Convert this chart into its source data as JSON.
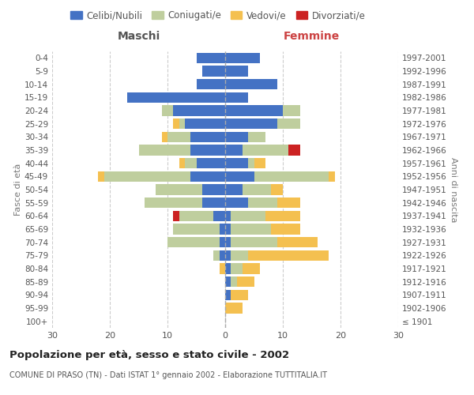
{
  "age_groups": [
    "100+",
    "95-99",
    "90-94",
    "85-89",
    "80-84",
    "75-79",
    "70-74",
    "65-69",
    "60-64",
    "55-59",
    "50-54",
    "45-49",
    "40-44",
    "35-39",
    "30-34",
    "25-29",
    "20-24",
    "15-19",
    "10-14",
    "5-9",
    "0-4"
  ],
  "birth_years": [
    "≤ 1901",
    "1902-1906",
    "1907-1911",
    "1912-1916",
    "1917-1921",
    "1922-1926",
    "1927-1931",
    "1932-1936",
    "1937-1941",
    "1942-1946",
    "1947-1951",
    "1952-1956",
    "1957-1961",
    "1962-1966",
    "1967-1971",
    "1972-1976",
    "1977-1981",
    "1982-1986",
    "1987-1991",
    "1992-1996",
    "1997-2001"
  ],
  "colors": {
    "celibi": "#4472C4",
    "coniugati": "#BFCE9E",
    "vedovi": "#F4C050",
    "divorziati": "#CC2222"
  },
  "maschi": {
    "celibi": [
      0,
      0,
      0,
      0,
      0,
      1,
      1,
      1,
      2,
      4,
      4,
      6,
      5,
      6,
      6,
      7,
      9,
      17,
      5,
      4,
      5
    ],
    "coniugati": [
      0,
      0,
      0,
      0,
      0,
      1,
      9,
      8,
      6,
      10,
      8,
      15,
      2,
      9,
      4,
      1,
      2,
      0,
      0,
      0,
      0
    ],
    "vedovi": [
      0,
      0,
      0,
      0,
      1,
      0,
      0,
      0,
      0,
      0,
      0,
      1,
      1,
      0,
      1,
      1,
      0,
      0,
      0,
      0,
      0
    ],
    "divorziati": [
      0,
      0,
      0,
      0,
      0,
      0,
      0,
      0,
      1,
      0,
      0,
      0,
      0,
      0,
      0,
      0,
      0,
      0,
      0,
      0,
      0
    ]
  },
  "femmine": {
    "celibi": [
      0,
      0,
      1,
      1,
      1,
      1,
      1,
      1,
      1,
      4,
      3,
      5,
      4,
      3,
      4,
      9,
      10,
      4,
      9,
      4,
      6
    ],
    "coniugati": [
      0,
      0,
      0,
      1,
      2,
      3,
      8,
      7,
      6,
      5,
      5,
      13,
      1,
      8,
      3,
      4,
      3,
      0,
      0,
      0,
      0
    ],
    "vedovi": [
      0,
      3,
      3,
      3,
      3,
      14,
      7,
      5,
      6,
      4,
      2,
      1,
      2,
      0,
      0,
      0,
      0,
      0,
      0,
      0,
      0
    ],
    "divorziati": [
      0,
      0,
      0,
      0,
      0,
      0,
      0,
      0,
      0,
      0,
      0,
      0,
      0,
      2,
      0,
      0,
      0,
      0,
      0,
      0,
      0
    ]
  },
  "xlim": 30,
  "title": "Popolazione per età, sesso e stato civile - 2002",
  "subtitle": "COMUNE DI PRASO (TN) - Dati ISTAT 1° gennaio 2002 - Elaborazione TUTTITALIA.IT",
  "ylabel_left": "Fasce di età",
  "ylabel_right": "Anni di nascita",
  "xlabel_left": "Maschi",
  "xlabel_right": "Femmine",
  "background_color": "#FFFFFF",
  "grid_color": "#CCCCCC"
}
